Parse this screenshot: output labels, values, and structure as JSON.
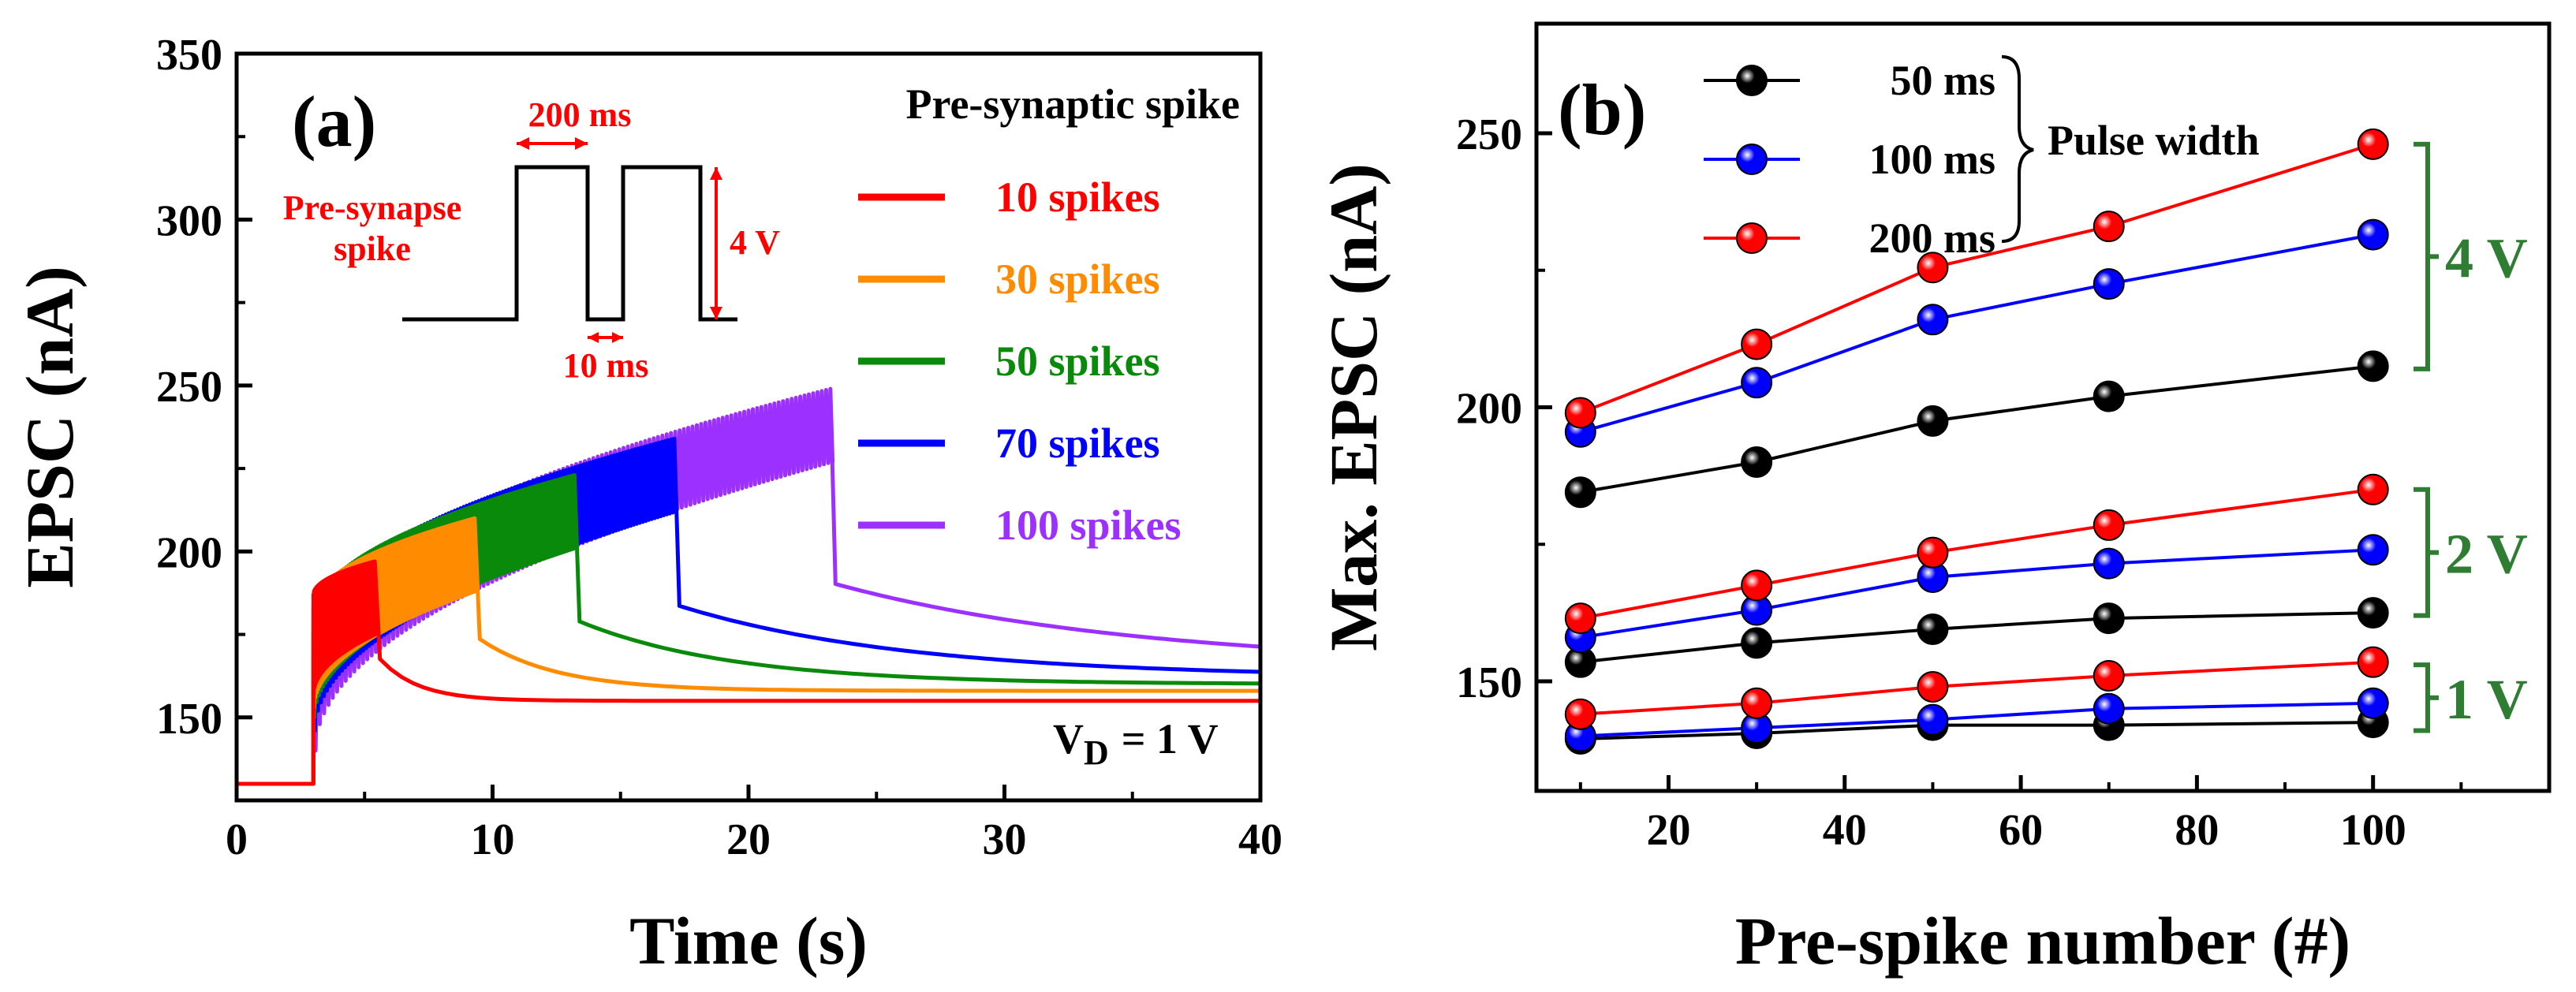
{
  "chart_data": [
    {
      "panel": "(a)",
      "type": "line",
      "xlabel": "Time (s)",
      "ylabel": "EPSC (nA)",
      "xlim": [
        0,
        40
      ],
      "ylim": [
        125,
        350
      ],
      "xticks": [
        0,
        10,
        20,
        30,
        40
      ],
      "yticks": [
        150,
        200,
        250,
        300,
        350
      ],
      "legend_title": "Pre-synaptic spike",
      "annotation_vd": "V",
      "annotation_vd_sub": "D",
      "annotation_vd_value": "= 1 V",
      "baseline": 130,
      "spike_start": 3,
      "inset": {
        "label": "Pre-synapse spike",
        "label_line1": "Pre-synapse",
        "label_line2": "spike",
        "width_label": "200 ms",
        "gap_label": "10 ms",
        "amp_label": "4 V"
      },
      "series": [
        {
          "name": "10 spikes",
          "color": "#ff0000",
          "end_time": 5.4,
          "start_peak": 187,
          "peak": 197,
          "tail_end": 155,
          "tau": 1.5
        },
        {
          "name": "30 spikes",
          "color": "#ff8c00",
          "end_time": 9.3,
          "start_peak": 183,
          "peak": 210,
          "tail_end": 158,
          "tau": 3
        },
        {
          "name": "50 spikes",
          "color": "#0a8a0a",
          "end_time": 13.2,
          "start_peak": 180,
          "peak": 223,
          "tail_end": 160,
          "tau": 6
        },
        {
          "name": "70 spikes",
          "color": "#0000ff",
          "end_time": 17.1,
          "start_peak": 176,
          "peak": 234,
          "tail_end": 162,
          "tau": 9
        },
        {
          "name": "100 spikes",
          "color": "#9b30ff",
          "end_time": 23.2,
          "start_peak": 170,
          "peak": 249,
          "tail_end": 165,
          "tau": 12
        }
      ]
    },
    {
      "panel": "(b)",
      "type": "scatter",
      "xlabel": "Pre-spike number (#)",
      "ylabel": "Max. EPSC (nA)",
      "xlim": [
        5,
        120
      ],
      "ylim": [
        130,
        270
      ],
      "xticks": [
        20,
        40,
        60,
        80,
        100
      ],
      "yticks": [
        150,
        200,
        250
      ],
      "x": [
        10,
        30,
        50,
        70,
        100
      ],
      "legend_title": "Pulse width",
      "legend": [
        {
          "name": "50 ms",
          "color": "#000000"
        },
        {
          "name": "100 ms",
          "color": "#0000ff"
        },
        {
          "name": "200 ms",
          "color": "#ff0000"
        }
      ],
      "groups": [
        {
          "label": "4 V",
          "range": [
            207,
            248
          ],
          "series": [
            {
              "name": "50 ms",
              "color": "#000000",
              "values": [
                184.5,
                190,
                197.5,
                202,
                207.5
              ]
            },
            {
              "name": "100 ms",
              "color": "#0000ff",
              "values": [
                195.5,
                204.5,
                216,
                222.5,
                231.5
              ]
            },
            {
              "name": "200 ms",
              "color": "#ff0000",
              "values": [
                199,
                211.5,
                225.5,
                233,
                248
              ]
            }
          ]
        },
        {
          "label": "2 V",
          "range": [
            162,
            185
          ],
          "series": [
            {
              "name": "50 ms",
              "color": "#000000",
              "values": [
                153.5,
                157,
                159.5,
                161.5,
                162.5
              ]
            },
            {
              "name": "100 ms",
              "color": "#0000ff",
              "values": [
                158,
                163,
                169,
                171.5,
                174
              ]
            },
            {
              "name": "200 ms",
              "color": "#ff0000",
              "values": [
                161.5,
                167.5,
                173.5,
                178.5,
                185
              ]
            }
          ]
        },
        {
          "label": "1 V",
          "range": [
            141,
            153
          ],
          "series": [
            {
              "name": "50 ms",
              "color": "#000000",
              "values": [
                139.5,
                140.5,
                142,
                142,
                142.5
              ]
            },
            {
              "name": "100 ms",
              "color": "#0000ff",
              "values": [
                140,
                141.5,
                143,
                145,
                146
              ]
            },
            {
              "name": "200 ms",
              "color": "#ff0000",
              "values": [
                144,
                146,
                149,
                151,
                153.5
              ]
            }
          ]
        }
      ],
      "group_color": "#2e7d32"
    }
  ]
}
